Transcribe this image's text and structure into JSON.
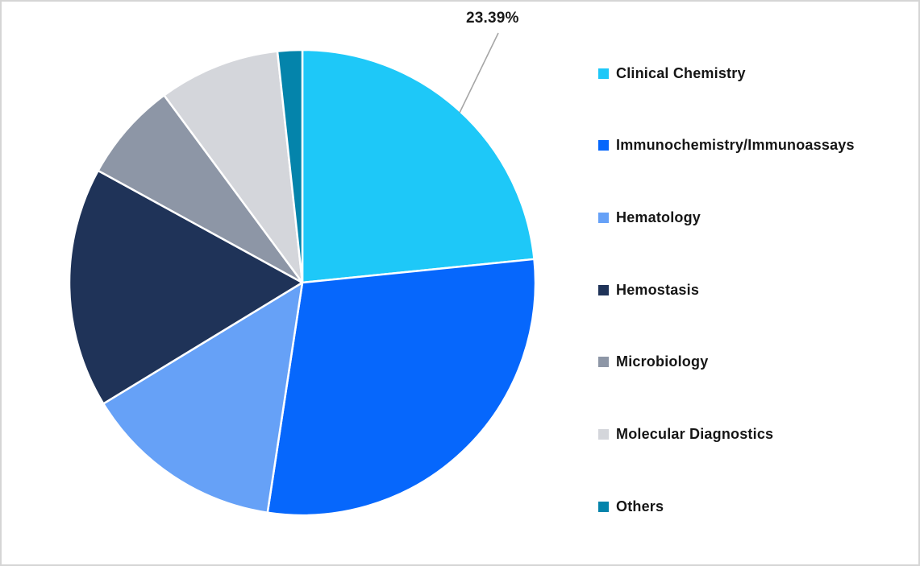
{
  "chart_data": {
    "type": "pie",
    "categories": [
      "Clinical Chemistry",
      "Immunochemistry/Immunoassays",
      "Hematology",
      "Hemostasis",
      "Microbiology",
      "Molecular Diagnostics",
      "Others"
    ],
    "values": [
      23.39,
      29.0,
      13.9,
      16.7,
      6.9,
      8.4,
      1.71
    ],
    "unit": "%",
    "colors": [
      "#1EC8F8",
      "#0667FC",
      "#66A1F7",
      "#1F3358",
      "#8D96A6",
      "#D4D6DB",
      "#0484AB"
    ],
    "start_angle_deg": 0,
    "direction": "clockwise",
    "legend_position": "right",
    "grid": false,
    "data_labels": [
      {
        "slice_index": 0,
        "text": "23.39%"
      }
    ]
  },
  "callout": {
    "text": "23.39%",
    "line_color": "#A6A6A6",
    "text_color": "#1A1A1A"
  },
  "frame": {
    "background": "#FFFFFF",
    "border_color": "#D5D5D5"
  }
}
